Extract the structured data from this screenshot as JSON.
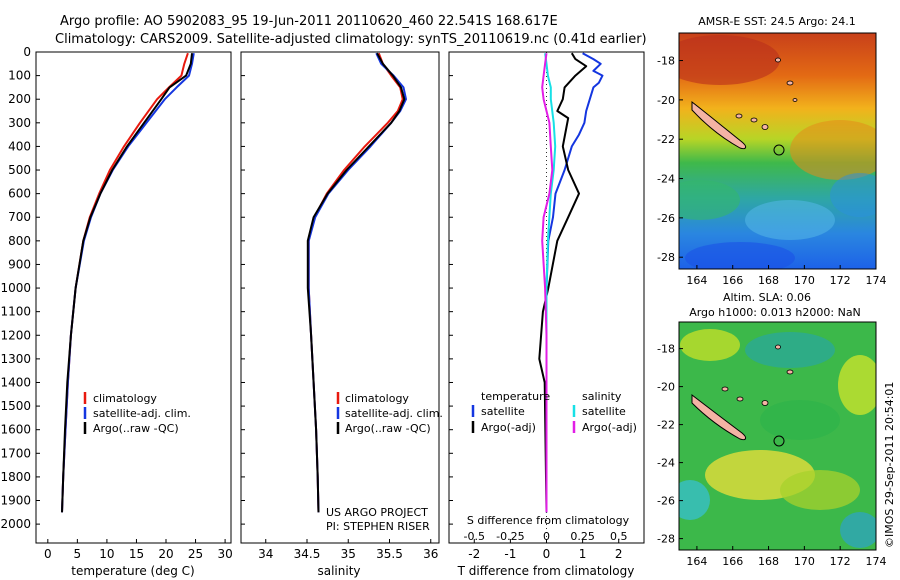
{
  "title": {
    "line1": "Argo profile: AO 5902083_95 19-Jun-2011 20110620_460 22.541S 168.617E",
    "line2": "Climatology: CARS2009. Satellite-adjusted climatology: synTS_20110619.nc (0.41d earlier)"
  },
  "colors": {
    "climatology": "#e8190e",
    "satellite": "#1436e0",
    "argo": "#000000",
    "salinity_satellite": "#17e0e6",
    "salinity_argo": "#e21ee6"
  },
  "chart_data": [
    {
      "type": "line",
      "name": "temperature-profile",
      "xlabel": "temperature (deg C)",
      "ylabel": "",
      "xlim": [
        -2,
        31
      ],
      "ylim": [
        2080,
        0
      ],
      "xticks": [
        0,
        5,
        10,
        15,
        20,
        25,
        30
      ],
      "yticks": [
        0,
        100,
        200,
        300,
        400,
        500,
        600,
        700,
        800,
        900,
        1000,
        1100,
        1200,
        1300,
        1400,
        1500,
        1600,
        1700,
        1800,
        1900,
        2000
      ],
      "legend": [
        "climatology",
        "satellite-adj. clim.",
        "Argo(..raw -QC)"
      ],
      "series": [
        {
          "name": "climatology",
          "depth": [
            5,
            50,
            100,
            150,
            200,
            300,
            400,
            500,
            600,
            700,
            800,
            1000,
            1200,
            1400,
            1600,
            1800,
            1950
          ],
          "values": [
            23.7,
            23.1,
            22.6,
            20.5,
            18.5,
            15.6,
            12.9,
            10.5,
            8.7,
            7.1,
            6.0,
            4.7,
            3.9,
            3.4,
            3.0,
            2.6,
            2.4
          ]
        },
        {
          "name": "satellite-adj. clim.",
          "depth": [
            5,
            50,
            100,
            150,
            200,
            300,
            400,
            500,
            600,
            700,
            800,
            1000,
            1200,
            1400,
            1600,
            1800,
            1950
          ],
          "values": [
            24.7,
            24.4,
            23.9,
            21.8,
            19.8,
            16.7,
            13.6,
            11.0,
            8.9,
            7.3,
            6.1,
            4.7,
            3.9,
            3.4,
            3.0,
            2.6,
            2.4
          ]
        },
        {
          "name": "Argo(..raw -QC)",
          "depth": [
            5,
            50,
            100,
            150,
            200,
            300,
            400,
            500,
            600,
            700,
            800,
            1000,
            1200,
            1400,
            1600,
            1800,
            1950
          ],
          "values": [
            24.4,
            24.2,
            23.4,
            20.6,
            19.2,
            16.3,
            13.4,
            10.9,
            8.9,
            7.2,
            6.0,
            4.7,
            3.9,
            3.3,
            2.9,
            2.6,
            2.4
          ]
        }
      ]
    },
    {
      "type": "line",
      "name": "salinity-profile",
      "xlabel": "salinity",
      "xlim": [
        33.7,
        36.1
      ],
      "ylim": [
        2080,
        0
      ],
      "xticks": [
        34,
        34.5,
        35,
        35.5,
        36
      ],
      "legend": [
        "climatology",
        "satellite-adj. clim.",
        "Argo(..raw -QC)"
      ],
      "series": [
        {
          "name": "climatology",
          "depth": [
            5,
            50,
            100,
            150,
            200,
            250,
            300,
            400,
            500,
            600,
            700,
            800,
            1000,
            1200,
            1400,
            1600,
            1800,
            1950
          ],
          "values": [
            35.37,
            35.42,
            35.52,
            35.63,
            35.66,
            35.6,
            35.48,
            35.2,
            34.95,
            34.74,
            34.59,
            34.52,
            34.52,
            34.55,
            34.58,
            34.61,
            34.63,
            34.64
          ]
        },
        {
          "name": "satellite-adj. clim.",
          "depth": [
            5,
            50,
            100,
            150,
            200,
            250,
            300,
            400,
            500,
            600,
            700,
            800,
            1000,
            1200,
            1400,
            1600,
            1800,
            1950
          ],
          "values": [
            35.34,
            35.4,
            35.55,
            35.67,
            35.7,
            35.63,
            35.52,
            35.27,
            35.0,
            34.76,
            34.6,
            34.52,
            34.52,
            34.55,
            34.58,
            34.61,
            34.63,
            34.64
          ]
        },
        {
          "name": "Argo(..raw -QC)",
          "depth": [
            5,
            50,
            100,
            150,
            200,
            250,
            300,
            400,
            500,
            600,
            700,
            800,
            1000,
            1200,
            1400,
            1600,
            1800,
            1950
          ],
          "values": [
            35.35,
            35.42,
            35.54,
            35.64,
            35.68,
            35.62,
            35.52,
            35.25,
            34.98,
            34.75,
            34.58,
            34.51,
            34.51,
            34.55,
            34.58,
            34.61,
            34.63,
            34.64
          ]
        }
      ],
      "annotations": [
        "US ARGO PROJECT",
        "PI: STEPHEN RISER"
      ]
    },
    {
      "type": "line",
      "name": "difference-profile",
      "xlabel": "T difference from climatology",
      "xlabel_top": "S difference from climatology",
      "xlim": [
        -2.7,
        2.7
      ],
      "ylim": [
        2080,
        0
      ],
      "xticks": [
        -2,
        -1,
        0,
        1,
        2
      ],
      "xticks_salinity": [
        "-0.5",
        "-0.25",
        "0",
        "0.25",
        "0.5"
      ],
      "legend_headers": [
        "temperature",
        "salinity"
      ],
      "legend": [
        "satellite",
        "Argo(-adj)",
        "satellite",
        "Argo(-adj)"
      ],
      "series": [
        {
          "name": "temperature satellite",
          "depth": [
            5,
            30,
            50,
            80,
            100,
            130,
            150,
            200,
            250,
            300,
            350,
            400,
            500,
            600,
            700,
            800,
            1000,
            1200,
            1500,
            1950
          ],
          "values": [
            1.0,
            1.3,
            1.5,
            1.3,
            1.55,
            1.45,
            1.3,
            1.2,
            1.1,
            1.05,
            0.9,
            0.7,
            0.5,
            0.25,
            0.18,
            0.05,
            0.0,
            0.0,
            0.0,
            0.0
          ]
        },
        {
          "name": "temperature Argo(-adj)",
          "depth": [
            5,
            30,
            60,
            100,
            150,
            200,
            250,
            280,
            320,
            400,
            500,
            600,
            700,
            800,
            1000,
            1100,
            1200,
            1300,
            1400,
            1950
          ],
          "values": [
            0.7,
            0.8,
            1.1,
            0.8,
            0.5,
            0.45,
            0.3,
            0.6,
            0.55,
            0.45,
            0.6,
            0.9,
            0.6,
            0.3,
            0.05,
            -0.1,
            -0.15,
            -0.2,
            -0.05,
            0.0
          ]
        },
        {
          "name": "salinity satellite",
          "depth": [
            5,
            50,
            100,
            150,
            200,
            300,
            400,
            500,
            600,
            800,
            1000,
            1200,
            1500,
            1950
          ],
          "values": [
            -0.01,
            0.0,
            0.01,
            0.03,
            0.03,
            0.05,
            0.06,
            0.05,
            0.03,
            0.01,
            0.0,
            0.0,
            0.0,
            0.0
          ]
        },
        {
          "name": "salinity Argo(-adj)",
          "depth": [
            5,
            50,
            100,
            150,
            200,
            300,
            400,
            500,
            600,
            700,
            800,
            1000,
            1200,
            1500,
            1950
          ],
          "values": [
            0.0,
            -0.01,
            -0.02,
            -0.03,
            -0.02,
            0.02,
            0.03,
            0.04,
            0.02,
            -0.02,
            -0.03,
            -0.01,
            0.0,
            0.0,
            0.0
          ]
        }
      ]
    }
  ],
  "maps": [
    {
      "name": "sst-map",
      "title": "AMSR-E SST: 24.5 Argo: 24.1",
      "xticks": [
        "164",
        "166",
        "168",
        "170",
        "172",
        "174"
      ],
      "yticks": [
        "-18",
        "-20",
        "-22",
        "-24",
        "-26",
        "-28"
      ],
      "lon_range": [
        163,
        174
      ],
      "lat_range": [
        -28.6,
        -16.6
      ],
      "argo_position": {
        "lon": 168.617,
        "lat": -22.541
      }
    },
    {
      "name": "sla-map",
      "title_line1": "Altim. SLA: 0.06",
      "title_line2": "Argo h1000: 0.013 h2000: NaN",
      "xticks": [
        "164",
        "166",
        "168",
        "170",
        "172",
        "174"
      ],
      "yticks": [
        "-18",
        "-20",
        "-22",
        "-24",
        "-26",
        "-28"
      ],
      "lon_range": [
        163,
        174
      ],
      "lat_range": [
        -28.6,
        -16.6
      ],
      "argo_position": {
        "lon": 168.617,
        "lat": -22.541
      }
    }
  ],
  "credit": "©IMOS 29-Sep-2011 20:54:01"
}
